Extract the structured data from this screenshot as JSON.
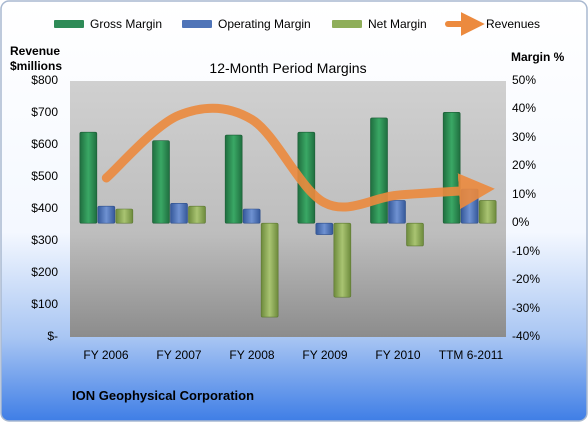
{
  "chart_data": {
    "type": "bar",
    "title": "12-Month Period Margins",
    "left_axis_title": [
      "Revenue",
      "$millions"
    ],
    "right_axis_title": "Margin %",
    "categories": [
      "FY 2006",
      "FY 2007",
      "FY 2008",
      "FY 2009",
      "FY 2010",
      "TTM 6-2011"
    ],
    "left_axis": {
      "min": 0,
      "max": 800,
      "step": 100,
      "ticks": [
        "$-",
        "$100",
        "$200",
        "$300",
        "$400",
        "$500",
        "$600",
        "$700",
        "$800"
      ]
    },
    "right_axis": {
      "min": -40,
      "max": 50,
      "step": 10,
      "ticks": [
        "-40%",
        "-30%",
        "-20%",
        "-10%",
        "0%",
        "10%",
        "20%",
        "30%",
        "40%",
        "50%"
      ]
    },
    "series": [
      {
        "name": "Gross Margin",
        "type": "bar",
        "axis": "right",
        "color": "#2e8b57",
        "values": [
          32,
          29,
          31,
          32,
          37,
          39
        ]
      },
      {
        "name": "Operating Margin",
        "type": "bar",
        "axis": "right",
        "color": "#4f74b8",
        "values": [
          6,
          7,
          5,
          -4,
          8,
          12
        ]
      },
      {
        "name": "Net Margin",
        "type": "bar",
        "axis": "right",
        "color": "#8fae5a",
        "values": [
          5,
          6,
          -33,
          -26,
          -8,
          8
        ]
      },
      {
        "name": "Revenues",
        "type": "line",
        "axis": "left",
        "color": "#ec8a3e",
        "values": [
          497,
          693,
          680,
          420,
          443,
          458
        ]
      }
    ],
    "legend_position": "top",
    "grid": false
  },
  "footer": {
    "company": "ION Geophysical Corporation"
  },
  "colors": {
    "border": "#a9b9d0",
    "plot_top": "#c9c9c9",
    "plot_bottom": "#8a8a8a",
    "bg_top": "#ffffff",
    "bg_bottom": "#3f7ee6"
  }
}
